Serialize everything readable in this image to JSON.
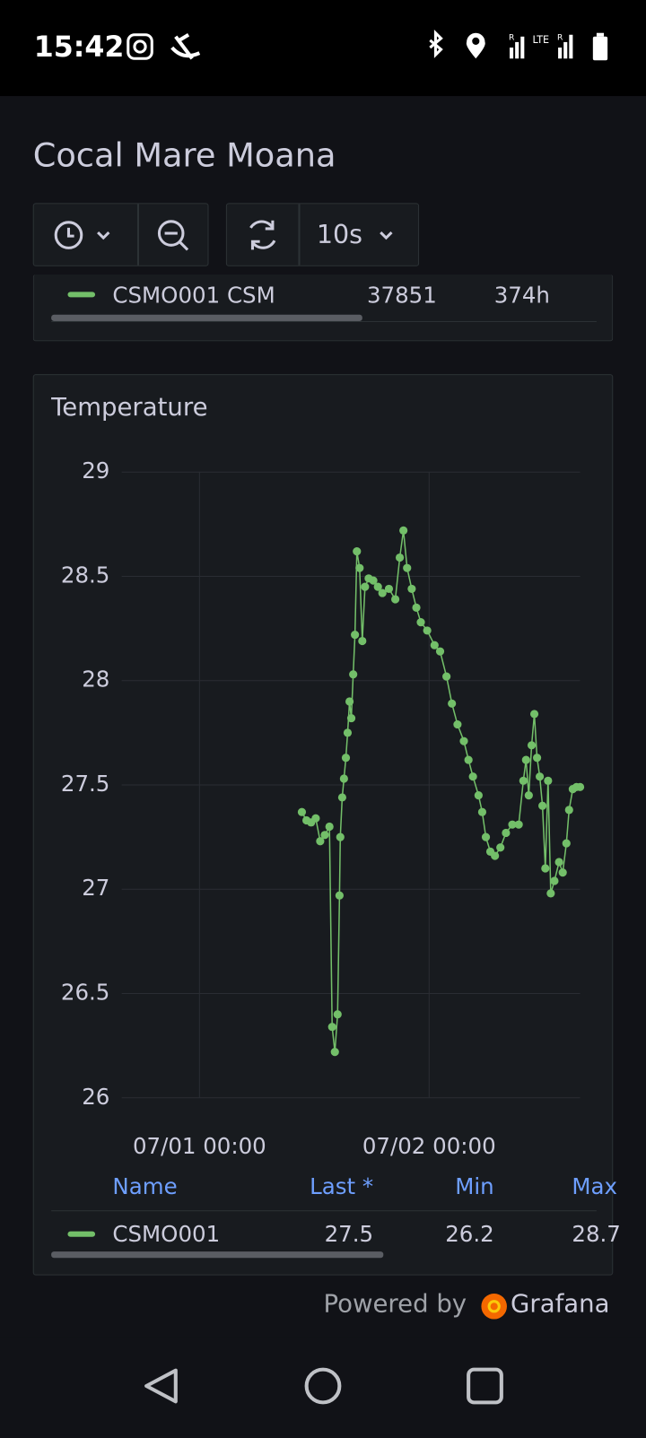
{
  "status_bar": {
    "time": "15:42",
    "network": "LTE",
    "roaming": "R"
  },
  "header": {
    "title": "Cocal Mare Moana",
    "refresh": "10s"
  },
  "prior_panel": {
    "row": [
      "CSMO001 CSM",
      "37851",
      "374h"
    ]
  },
  "chart_data": {
    "type": "line",
    "title": "Temperature",
    "x": [
      "07/01 10:42",
      "07/01 11:11",
      "07/01 11:40",
      "07/01 12:09",
      "07/01 12:37",
      "07/01 13:06",
      "07/01 13:35",
      "07/01 13:52",
      "07/01 14:09",
      "07/01 14:26",
      "07/01 14:38",
      "07/01 14:43",
      "07/01 14:55",
      "07/01 15:06",
      "07/01 15:18",
      "07/01 15:29",
      "07/01 15:41",
      "07/01 15:52",
      "07/01 16:04",
      "07/01 16:15",
      "07/01 16:27",
      "07/01 16:44",
      "07/01 17:01",
      "07/01 17:18",
      "07/01 17:41",
      "07/01 18:10",
      "07/01 18:39",
      "07/01 19:07",
      "07/01 19:48",
      "07/01 20:28",
      "07/01 20:56",
      "07/01 21:19",
      "07/01 21:42",
      "07/01 22:11",
      "07/01 22:40",
      "07/01 23:08",
      "07/01 23:48",
      "07/02 00:34",
      "07/02 01:09",
      "07/02 01:49",
      "07/02 02:23",
      "07/02 02:58",
      "07/02 03:38",
      "07/02 04:07",
      "07/02 04:35",
      "07/02 05:10",
      "07/02 05:33",
      "07/02 05:56",
      "07/02 06:24",
      "07/02 06:53",
      "07/02 07:27",
      "07/02 08:02",
      "07/02 08:42",
      "07/02 09:22",
      "07/02 09:51",
      "07/02 10:08",
      "07/02 10:25",
      "07/02 10:43",
      "07/02 11:00",
      "07/02 11:17",
      "07/02 11:34",
      "07/02 11:51",
      "07/02 12:09",
      "07/02 12:26",
      "07/02 12:43",
      "07/02 13:06",
      "07/02 13:35",
      "07/02 13:58",
      "07/02 14:21",
      "07/02 14:38",
      "07/02 15:01",
      "07/02 15:24",
      "07/02 15:47"
    ],
    "series": [
      {
        "name": "CSMO001",
        "color": "#73bf69",
        "values": [
          27.37,
          27.33,
          27.32,
          27.34,
          27.23,
          27.26,
          27.3,
          26.34,
          26.22,
          26.4,
          26.97,
          27.25,
          27.44,
          27.53,
          27.63,
          27.75,
          27.9,
          27.82,
          28.03,
          28.22,
          28.62,
          28.54,
          28.19,
          28.45,
          28.49,
          28.48,
          28.45,
          28.42,
          28.44,
          28.39,
          28.59,
          28.72,
          28.54,
          28.44,
          28.35,
          28.28,
          28.24,
          28.17,
          28.14,
          28.02,
          27.89,
          27.79,
          27.71,
          27.62,
          27.54,
          27.45,
          27.37,
          27.25,
          27.18,
          27.16,
          27.2,
          27.27,
          27.31,
          27.31,
          27.52,
          27.62,
          27.45,
          27.69,
          27.84,
          27.63,
          27.54,
          27.4,
          27.1,
          27.52,
          26.98,
          27.04,
          27.13,
          27.08,
          27.22,
          27.38,
          27.48,
          27.49,
          27.49
        ]
      }
    ],
    "xlim": [
      "06/30 15:52",
      "07/02 15:47"
    ],
    "xticks": [
      "07/01 00:00",
      "07/02 00:00"
    ],
    "ylim": [
      26,
      29
    ],
    "yticks": [
      26,
      26.5,
      27,
      27.5,
      28,
      28.5,
      29
    ],
    "grid": true,
    "legend_table": {
      "headers": [
        "Name",
        "Last *",
        "Min",
        "Max"
      ],
      "rows": [
        [
          27.5,
          26.2,
          28.7
        ]
      ]
    }
  },
  "footer": {
    "powered_by": "Powered by",
    "brand": "Grafana"
  }
}
